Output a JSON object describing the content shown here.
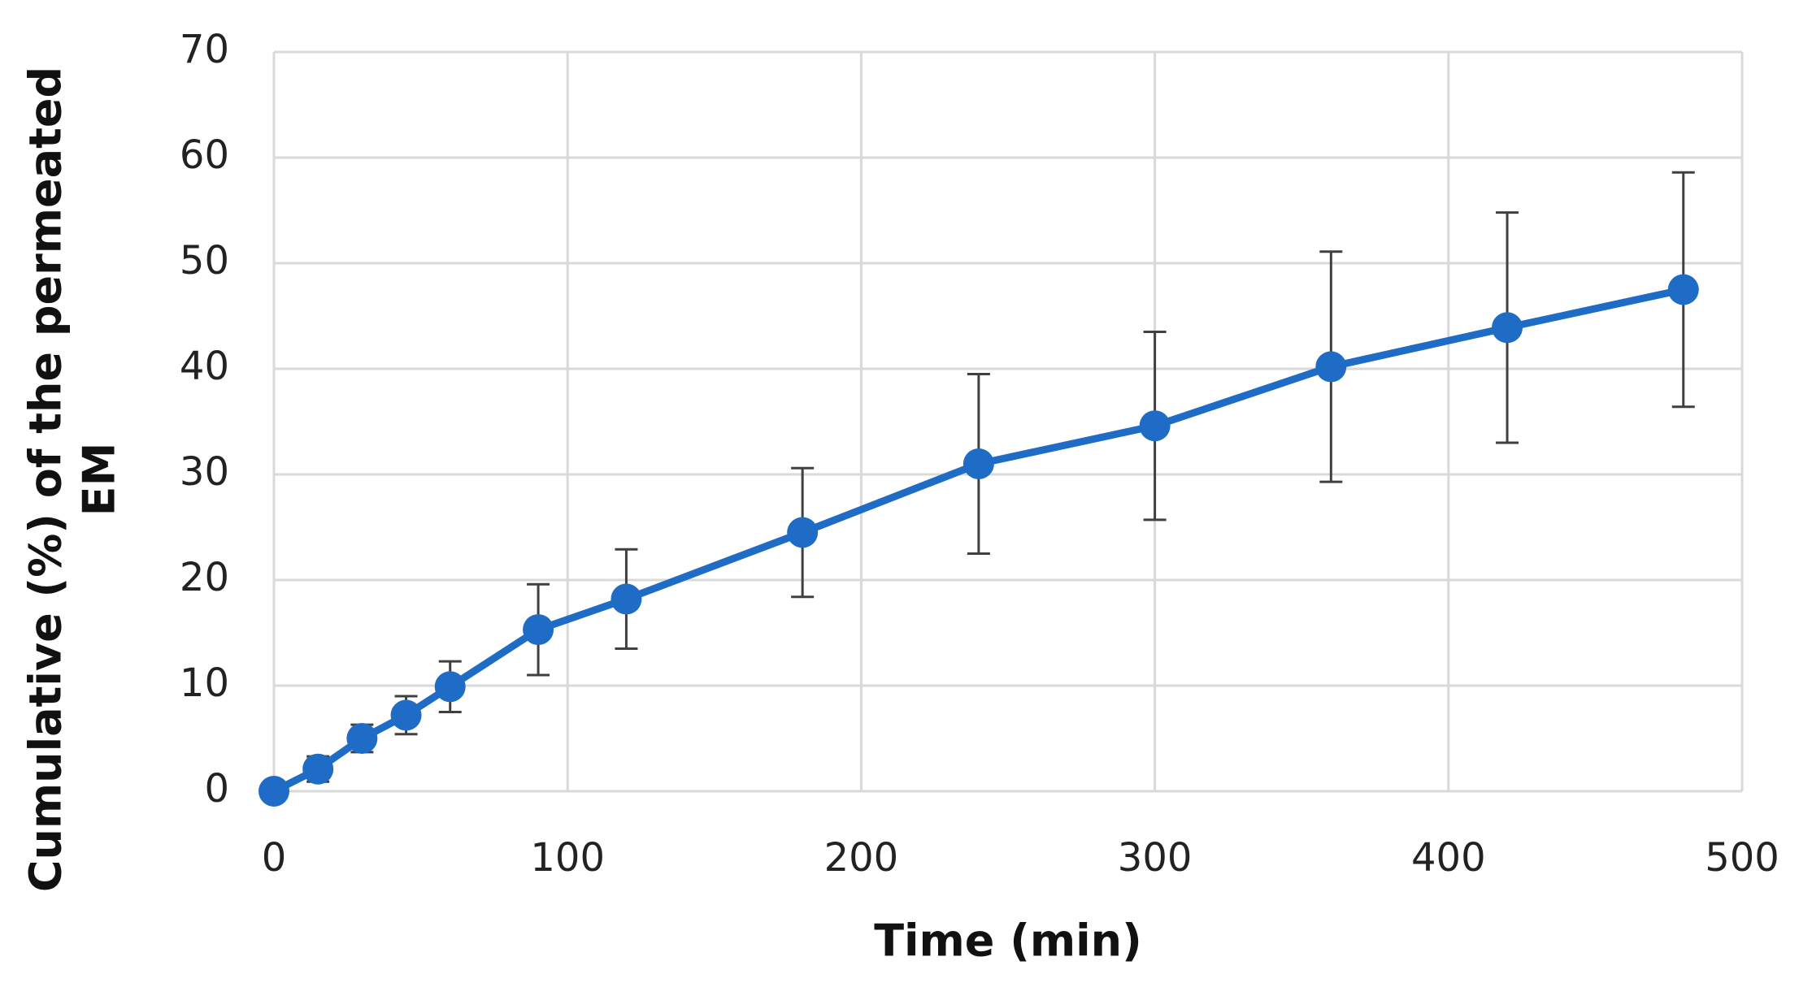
{
  "chart_data": {
    "type": "line",
    "xlabel": "Time (min)",
    "ylabel": [
      "Cumulative (%) of the permeated",
      "EM"
    ],
    "x": [
      0,
      15,
      30,
      45,
      60,
      90,
      120,
      180,
      240,
      300,
      360,
      420,
      480
    ],
    "values": [
      0,
      2.1,
      5.0,
      7.2,
      9.9,
      15.3,
      18.2,
      24.5,
      31.0,
      34.6,
      40.2,
      43.9,
      47.5
    ],
    "errors": [
      0,
      1.2,
      1.3,
      1.8,
      2.4,
      4.3,
      4.7,
      6.1,
      8.5,
      8.9,
      10.9,
      10.9,
      11.1
    ],
    "color": "#1f6cc6",
    "error_color": "#404040",
    "xlim": [
      0,
      500
    ],
    "xticks": [
      0,
      100,
      200,
      300,
      400,
      500
    ],
    "ylim": [
      0,
      70
    ],
    "yticks": [
      0,
      10,
      20,
      30,
      40,
      50,
      60,
      70
    ],
    "grid": true
  }
}
